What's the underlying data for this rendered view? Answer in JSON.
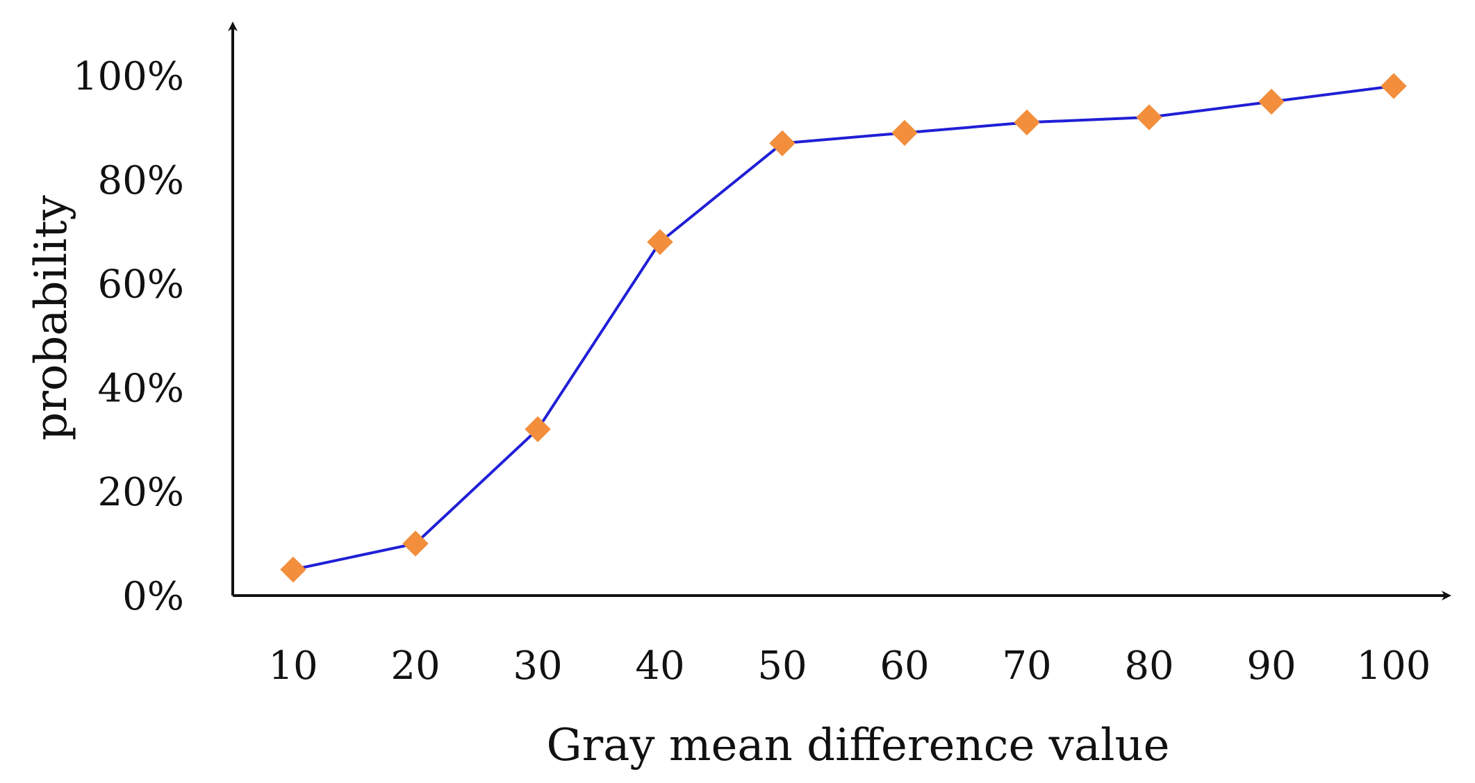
{
  "chart_data": {
    "type": "line",
    "title": "",
    "xlabel": "Gray mean difference value",
    "ylabel": "probability",
    "x": [
      10,
      20,
      30,
      40,
      50,
      60,
      70,
      80,
      90,
      100
    ],
    "x_tick_labels": [
      "10",
      "20",
      "30",
      "40",
      "50",
      "60",
      "70",
      "80",
      "90",
      "100"
    ],
    "y_tick_labels": [
      "0%",
      "20%",
      "40%",
      "60%",
      "80%",
      "100%"
    ],
    "y_ticks": [
      0,
      20,
      40,
      60,
      80,
      100
    ],
    "ylim": [
      0,
      100
    ],
    "grid": false,
    "legend": "none",
    "series": [
      {
        "values": [
          5,
          10,
          32,
          68,
          87,
          89,
          91,
          92,
          95,
          98
        ],
        "line_color": "#1f1fd6",
        "marker": "diamond",
        "marker_color": "#f28e3c"
      }
    ]
  }
}
